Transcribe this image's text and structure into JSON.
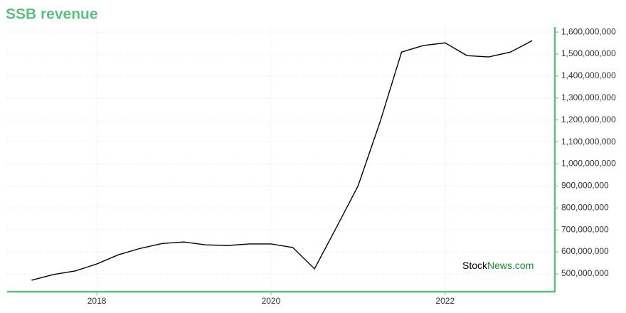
{
  "chart_data": {
    "type": "line",
    "title": "SSB revenue",
    "watermark": {
      "part1": "Stock",
      "part2": "News.com"
    },
    "x": [
      2017.25,
      2017.5,
      2017.75,
      2018.0,
      2018.25,
      2018.5,
      2018.75,
      2019.0,
      2019.25,
      2019.5,
      2019.75,
      2020.0,
      2020.25,
      2020.5,
      2020.75,
      2021.0,
      2021.25,
      2021.5,
      2021.75,
      2022.0,
      2022.25,
      2022.5,
      2022.75,
      2023.0
    ],
    "series": [
      {
        "name": "Revenue",
        "color": "#000000",
        "values": [
          471000000,
          497000000,
          513000000,
          545000000,
          587000000,
          616000000,
          638000000,
          645000000,
          632000000,
          629000000,
          636000000,
          636000000,
          620000000,
          523000000,
          710000000,
          900000000,
          1188000000,
          1509000000,
          1539000000,
          1551000000,
          1493000000,
          1487000000,
          1509000000,
          1561000000
        ]
      }
    ],
    "xlim": [
      2016.97,
      2023.26
    ],
    "xticks": [
      2018,
      2020,
      2022
    ],
    "ylim": [
      419000000,
      1623000000
    ],
    "yticks": [
      {
        "value": 500000000,
        "label": "500,000,000"
      },
      {
        "value": 600000000,
        "label": "600,000,000"
      },
      {
        "value": 700000000,
        "label": "700,000,000"
      },
      {
        "value": 800000000,
        "label": "800,000,000"
      },
      {
        "value": 900000000,
        "label": "900,000,000"
      },
      {
        "value": 1000000000,
        "label": "1,000,000,000"
      },
      {
        "value": 1100000000,
        "label": "1,100,000,000"
      },
      {
        "value": 1200000000,
        "label": "1,200,000,000"
      },
      {
        "value": 1300000000,
        "label": "1,300,000,000"
      },
      {
        "value": 1400000000,
        "label": "1,400,000,000"
      },
      {
        "value": 1500000000,
        "label": "1,500,000,000"
      },
      {
        "value": 1600000000,
        "label": "1,600,000,000"
      }
    ],
    "grid": true,
    "axis_color": "#5bbf82"
  }
}
